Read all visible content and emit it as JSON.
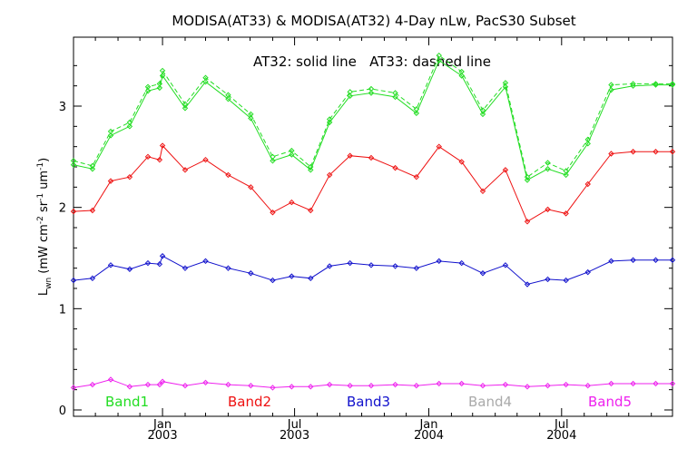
{
  "chart_data": {
    "type": "line",
    "title": "MODISA(AT33) & MODISA(AT32) 4-Day nLw, PacS30 Subset",
    "annotation": "AT32: solid line   AT33: dashed line",
    "ylabel_main": "L",
    "ylabel_sub": "wn",
    "ylabel_units": "(mW cm",
    "ylabel_exp1": "-2",
    "ylabel_mid": " sr",
    "ylabel_exp2": "-1",
    "ylabel_mid2": " um",
    "ylabel_exp3": "-1",
    "ylabel_end": ")",
    "ylim": [
      0,
      3.6
    ],
    "y_ticks": [
      0,
      1,
      2,
      3
    ],
    "x_start": "2002-09-01",
    "x_end": "2004-11-30",
    "x_ticks": [
      {
        "date": "2003-01-01",
        "top": "Jan",
        "bottom": "2003"
      },
      {
        "date": "2003-07-01",
        "top": "Jul",
        "bottom": "2003"
      },
      {
        "date": "2004-01-01",
        "top": "Jan",
        "bottom": "2004"
      },
      {
        "date": "2004-07-01",
        "top": "Jul",
        "bottom": "2004"
      }
    ],
    "x_minor_ticks": [
      "2002-10-01",
      "2002-11-01",
      "2002-12-01",
      "2003-02-01",
      "2003-03-01",
      "2003-04-01",
      "2003-05-01",
      "2003-06-01",
      "2003-08-01",
      "2003-09-01",
      "2003-10-01",
      "2003-11-01",
      "2003-12-01",
      "2004-02-01",
      "2004-03-01",
      "2004-04-01",
      "2004-05-01",
      "2004-06-01",
      "2004-08-01",
      "2004-09-01",
      "2004-10-01",
      "2004-11-01"
    ],
    "dates": [
      "2002-09-01",
      "2002-09-27",
      "2002-10-22",
      "2002-11-17",
      "2002-12-12",
      "2002-12-28",
      "2003-01-01",
      "2003-02-01",
      "2003-03-01",
      "2003-04-01",
      "2003-05-02",
      "2003-06-01",
      "2003-06-27",
      "2003-07-23",
      "2003-08-18",
      "2003-09-15",
      "2003-10-14",
      "2003-11-16",
      "2003-12-15",
      "2004-01-15",
      "2004-02-15",
      "2004-03-15",
      "2004-04-15",
      "2004-05-15",
      "2004-06-12",
      "2004-07-07",
      "2004-08-06",
      "2004-09-07",
      "2004-10-07",
      "2004-11-07",
      "2004-11-30"
    ],
    "series": [
      {
        "name": "Band1",
        "color": "#22dd22",
        "dashed": false,
        "values": [
          2.42,
          2.38,
          2.71,
          2.8,
          3.15,
          3.18,
          3.3,
          2.98,
          3.24,
          3.07,
          2.88,
          2.46,
          2.52,
          2.37,
          2.84,
          3.1,
          3.13,
          3.09,
          2.93,
          3.45,
          3.3,
          2.92,
          3.19,
          2.27,
          2.38,
          2.32,
          2.63,
          3.16,
          3.2,
          3.21,
          3.21
        ]
      },
      {
        "name": "Band1 (AT33)",
        "color": "#22dd22",
        "dashed": true,
        "values": [
          2.46,
          2.41,
          2.75,
          2.84,
          3.19,
          3.22,
          3.35,
          3.02,
          3.28,
          3.11,
          2.92,
          2.5,
          2.56,
          2.4,
          2.87,
          3.14,
          3.17,
          3.13,
          2.97,
          3.5,
          3.34,
          2.96,
          3.23,
          2.3,
          2.44,
          2.36,
          2.67,
          3.21,
          3.22,
          3.22,
          3.22
        ]
      },
      {
        "name": "Band2",
        "color": "#ee1111",
        "dashed": false,
        "values": [
          1.96,
          1.97,
          2.26,
          2.3,
          2.5,
          2.47,
          2.61,
          2.37,
          2.47,
          2.32,
          2.2,
          1.95,
          2.05,
          1.97,
          2.32,
          2.51,
          2.49,
          2.39,
          2.3,
          2.6,
          2.45,
          2.16,
          2.37,
          1.86,
          1.98,
          1.94,
          2.23,
          2.53,
          2.55,
          2.55,
          2.55
        ]
      },
      {
        "name": "Band3",
        "color": "#1111cc",
        "dashed": false,
        "values": [
          1.28,
          1.3,
          1.43,
          1.39,
          1.45,
          1.44,
          1.52,
          1.4,
          1.47,
          1.4,
          1.35,
          1.28,
          1.32,
          1.3,
          1.42,
          1.45,
          1.43,
          1.42,
          1.4,
          1.47,
          1.45,
          1.35,
          1.43,
          1.24,
          1.29,
          1.28,
          1.36,
          1.47,
          1.48,
          1.48,
          1.48
        ]
      },
      {
        "name": "Band5",
        "color": "#ee22ee",
        "dashed": false,
        "values": [
          0.22,
          0.25,
          0.3,
          0.23,
          0.25,
          0.25,
          0.28,
          0.24,
          0.27,
          0.25,
          0.24,
          0.22,
          0.23,
          0.23,
          0.25,
          0.24,
          0.24,
          0.25,
          0.24,
          0.26,
          0.26,
          0.24,
          0.25,
          0.23,
          0.24,
          0.25,
          0.24,
          0.26,
          0.26,
          0.26,
          0.26
        ]
      }
    ],
    "legend": [
      {
        "label": "Band1",
        "color": "#22dd22"
      },
      {
        "label": "Band2",
        "color": "#ee1111"
      },
      {
        "label": "Band3",
        "color": "#1111cc"
      },
      {
        "label": "Band4",
        "color": "#aaaaaa"
      },
      {
        "label": "Band5",
        "color": "#ee22ee"
      }
    ],
    "grid": false,
    "legend_placement": "bottom"
  }
}
